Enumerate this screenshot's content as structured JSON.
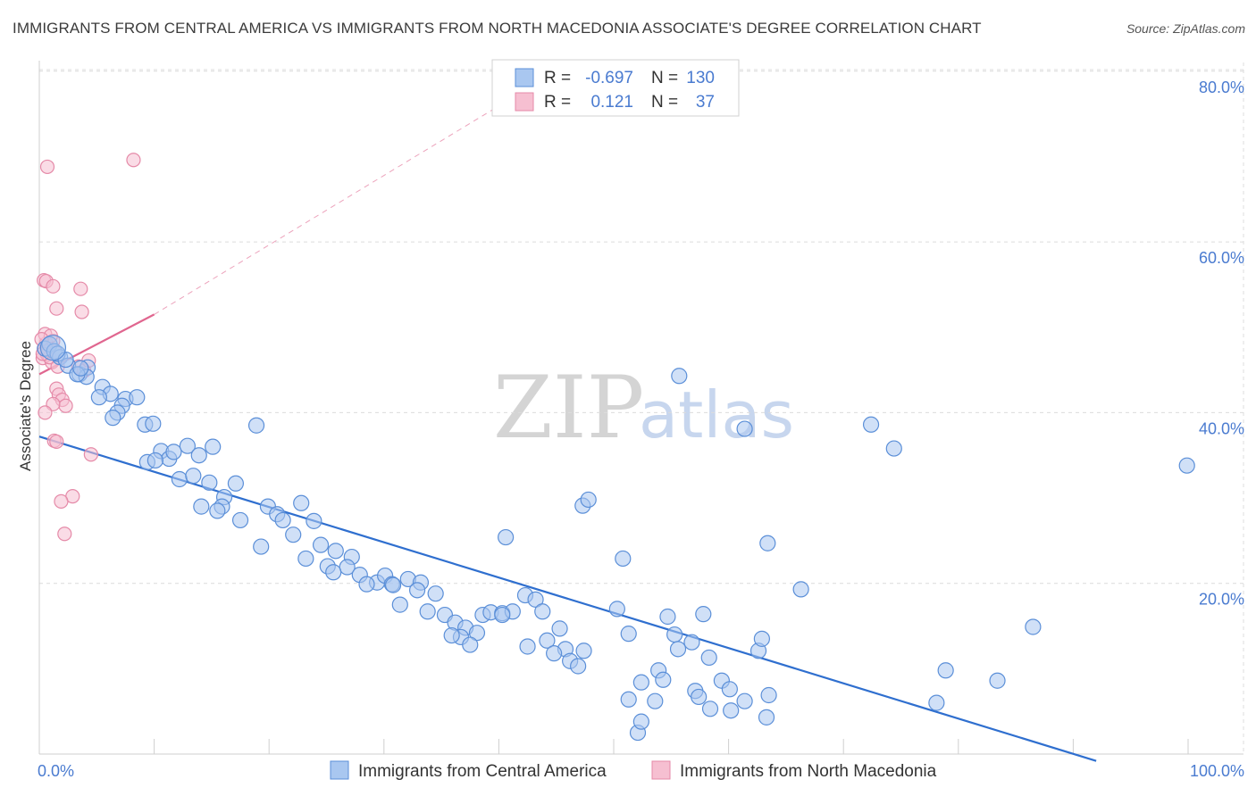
{
  "header": {
    "title": "IMMIGRANTS FROM CENTRAL AMERICA VS IMMIGRANTS FROM NORTH MACEDONIA ASSOCIATE'S DEGREE CORRELATION CHART",
    "source": "Source: ZipAtlas.com"
  },
  "watermark": {
    "zip": "ZIP",
    "atlas": "atlas"
  },
  "legend_top": {
    "rows": [
      {
        "r_label": "R =",
        "r_value": "-0.697",
        "n_label": "N =",
        "n_value": "130"
      },
      {
        "r_label": "R =",
        "r_value": "0.121",
        "n_label": "N =",
        "n_value": "37"
      }
    ]
  },
  "legend_bottom": {
    "items": [
      "Immigrants from Central America",
      "Immigrants from North Macedonia"
    ]
  },
  "colors": {
    "blue_fill": "#a9c7f0",
    "blue_stroke": "#5b8fd8",
    "blue_line": "#2f6fcf",
    "pink_fill": "#f6bfd1",
    "pink_stroke": "#e58aa8",
    "pink_line": "#e0668f",
    "grid": "#dcdcdc",
    "axis_text": "#4a7bd0"
  },
  "chart_data": {
    "type": "scatter",
    "title": "IMMIGRANTS FROM CENTRAL AMERICA VS IMMIGRANTS FROM NORTH MACEDONIA ASSOCIATE'S DEGREE CORRELATION CHART",
    "xlabel": "",
    "ylabel": "Associate's Degree",
    "xlim": [
      0,
      100
    ],
    "ylim": [
      0,
      80
    ],
    "x_tick_labels": [
      "0.0%",
      "100.0%"
    ],
    "y_ticks": [
      20,
      40,
      60,
      80
    ],
    "y_tick_labels": [
      "20.0%",
      "40.0%",
      "60.0%",
      "80.0%"
    ],
    "grid": true,
    "series": [
      {
        "name": "Immigrants from Central America",
        "color": "#a9c7f0",
        "R": -0.697,
        "N": 130,
        "trend": {
          "x": [
            0,
            92
          ],
          "y": [
            37.2,
            -0.8
          ]
        },
        "points": [
          [
            0.5,
            47.5
          ],
          [
            0.9,
            48
          ],
          [
            1.3,
            47.2
          ],
          [
            1.8,
            46.5
          ],
          [
            2.5,
            45.5
          ],
          [
            3.5,
            44.5
          ],
          [
            4.2,
            45.3
          ],
          [
            4.1,
            44.2
          ],
          [
            5.5,
            43
          ],
          [
            6.2,
            42.2
          ],
          [
            7.5,
            41.6
          ],
          [
            8.5,
            41.8
          ],
          [
            7.2,
            40.8
          ],
          [
            9.2,
            38.6
          ],
          [
            6.8,
            40
          ],
          [
            3.3,
            44.5
          ],
          [
            3.6,
            45.2
          ],
          [
            5.2,
            41.8
          ],
          [
            9.9,
            38.7
          ],
          [
            10.6,
            35.5
          ],
          [
            11.3,
            34.6
          ],
          [
            12.9,
            36.1
          ],
          [
            11.7,
            35.4
          ],
          [
            9.4,
            34.2
          ],
          [
            10.1,
            34.4
          ],
          [
            12.2,
            32.2
          ],
          [
            13.9,
            35
          ],
          [
            15.1,
            36
          ],
          [
            13.4,
            32.6
          ],
          [
            14.8,
            31.8
          ],
          [
            14.1,
            29
          ],
          [
            16.1,
            30.1
          ],
          [
            17.1,
            31.7
          ],
          [
            15.9,
            29
          ],
          [
            18.9,
            38.5
          ],
          [
            17.5,
            27.4
          ],
          [
            19.9,
            29
          ],
          [
            20.7,
            28.1
          ],
          [
            21.2,
            27.4
          ],
          [
            22.8,
            29.4
          ],
          [
            23.9,
            27.3
          ],
          [
            22.1,
            25.7
          ],
          [
            19.3,
            24.3
          ],
          [
            24.5,
            24.5
          ],
          [
            25.8,
            23.8
          ],
          [
            27.2,
            23.1
          ],
          [
            23.2,
            22.9
          ],
          [
            25.1,
            22
          ],
          [
            26.8,
            21.9
          ],
          [
            27.9,
            21
          ],
          [
            29.4,
            20.1
          ],
          [
            30.1,
            20.9
          ],
          [
            28.5,
            19.9
          ],
          [
            30.7,
            19.9
          ],
          [
            32.1,
            20.5
          ],
          [
            31.4,
            17.5
          ],
          [
            33.2,
            20.1
          ],
          [
            32.9,
            19.2
          ],
          [
            34.5,
            18.8
          ],
          [
            33.8,
            16.7
          ],
          [
            35.3,
            16.3
          ],
          [
            36.2,
            15.4
          ],
          [
            37.1,
            14.8
          ],
          [
            38.6,
            16.3
          ],
          [
            39.3,
            16.6
          ],
          [
            40.3,
            16.5
          ],
          [
            38.1,
            14.2
          ],
          [
            36.7,
            13.7
          ],
          [
            35.9,
            13.9
          ],
          [
            37.5,
            12.8
          ],
          [
            41.2,
            16.7
          ],
          [
            42.3,
            18.6
          ],
          [
            43.2,
            18.1
          ],
          [
            43.8,
            16.7
          ],
          [
            42.5,
            12.6
          ],
          [
            44.2,
            13.3
          ],
          [
            45.3,
            14.7
          ],
          [
            45.8,
            12.3
          ],
          [
            44.8,
            11.8
          ],
          [
            46.2,
            10.9
          ],
          [
            46.9,
            10.3
          ],
          [
            47.4,
            12.1
          ],
          [
            47.3,
            29.1
          ],
          [
            47.8,
            29.8
          ],
          [
            50.3,
            17
          ],
          [
            51.3,
            14.1
          ],
          [
            50.8,
            22.9
          ],
          [
            40.6,
            25.4
          ],
          [
            52.4,
            8.4
          ],
          [
            51.3,
            6.4
          ],
          [
            53.9,
            9.8
          ],
          [
            55.3,
            14
          ],
          [
            54.7,
            16.1
          ],
          [
            55.6,
            12.3
          ],
          [
            56.8,
            13.1
          ],
          [
            57.8,
            16.4
          ],
          [
            58.3,
            11.3
          ],
          [
            59.4,
            8.6
          ],
          [
            60.1,
            7.6
          ],
          [
            55.7,
            44.3
          ],
          [
            57.1,
            7.4
          ],
          [
            54.3,
            8.7
          ],
          [
            53.6,
            6.2
          ],
          [
            52.1,
            2.5
          ],
          [
            62.6,
            12.1
          ],
          [
            62.9,
            13.5
          ],
          [
            63.4,
            24.7
          ],
          [
            61.4,
            38.1
          ],
          [
            63.3,
            4.3
          ],
          [
            66.3,
            19.3
          ],
          [
            72.4,
            38.6
          ],
          [
            74.4,
            35.8
          ],
          [
            63.5,
            6.9
          ],
          [
            58.4,
            5.3
          ],
          [
            60.2,
            5.1
          ],
          [
            57.4,
            6.7
          ],
          [
            78.1,
            6.0
          ],
          [
            78.9,
            9.8
          ],
          [
            86.5,
            14.9
          ],
          [
            83.4,
            8.6
          ],
          [
            99.9,
            33.8
          ],
          [
            52.4,
            3.8
          ],
          [
            61.4,
            6.2
          ],
          [
            1.6,
            46.9
          ],
          [
            2.3,
            46.2
          ],
          [
            6.4,
            39.4
          ],
          [
            15.5,
            28.5
          ],
          [
            25.6,
            21.3
          ],
          [
            40.3,
            16.3
          ],
          [
            30.8,
            19.8
          ]
        ]
      },
      {
        "name": "Immigrants from North Macedonia",
        "color": "#f6bfd1",
        "R": 0.121,
        "N": 37,
        "trend": {
          "x": [
            0,
            10
          ],
          "y": [
            44.5,
            51.5
          ]
        },
        "trend_dashed": {
          "x": [
            10,
            45
          ],
          "y": [
            51.5,
            80
          ]
        },
        "points": [
          [
            0.3,
            46.4
          ],
          [
            0.4,
            47.5
          ],
          [
            0.6,
            48.1
          ],
          [
            0.5,
            49.2
          ],
          [
            0.7,
            46.8
          ],
          [
            0.8,
            47.3
          ],
          [
            1.1,
            45.9
          ],
          [
            1.2,
            48.4
          ],
          [
            0.9,
            46.5
          ],
          [
            1.4,
            47.1
          ],
          [
            1.6,
            45.4
          ],
          [
            1.0,
            49.0
          ],
          [
            0.4,
            55.5
          ],
          [
            0.6,
            55.4
          ],
          [
            1.2,
            54.8
          ],
          [
            1.5,
            52.2
          ],
          [
            3.6,
            54.5
          ],
          [
            3.7,
            51.8
          ],
          [
            0.7,
            68.8
          ],
          [
            8.2,
            69.6
          ],
          [
            1.5,
            42.8
          ],
          [
            1.7,
            42.1
          ],
          [
            2.0,
            41.5
          ],
          [
            2.3,
            40.8
          ],
          [
            1.2,
            41.0
          ],
          [
            0.5,
            40.0
          ],
          [
            1.3,
            36.7
          ],
          [
            1.5,
            36.6
          ],
          [
            4.5,
            35.1
          ],
          [
            2.9,
            30.2
          ],
          [
            1.9,
            29.6
          ],
          [
            2.2,
            25.8
          ],
          [
            3.4,
            45.4
          ],
          [
            3.9,
            44.9
          ],
          [
            4.3,
            46.1
          ],
          [
            0.3,
            46.9
          ],
          [
            0.2,
            48.6
          ]
        ]
      }
    ]
  }
}
